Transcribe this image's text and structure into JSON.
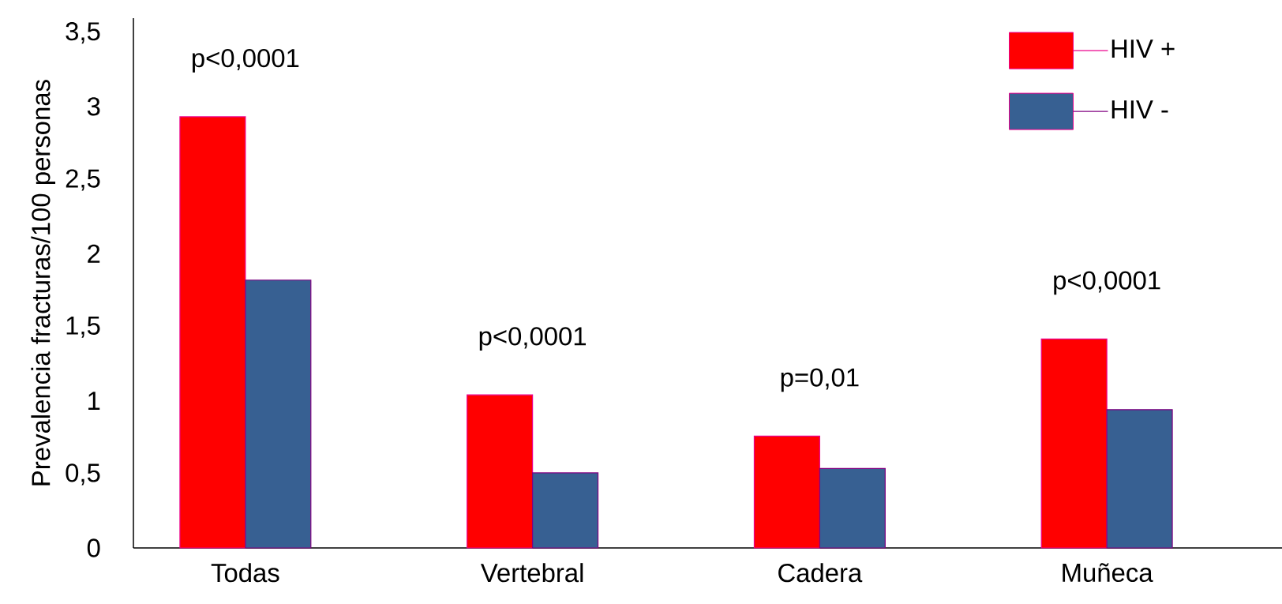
{
  "chart_data": {
    "type": "bar",
    "ylabel": "Prevalencia fracturas/100 personas",
    "categories": [
      "Todas",
      "Vertebral",
      "Cadera",
      "Muñeca"
    ],
    "series": [
      {
        "name": "HIV +",
        "color": "#ff0000",
        "values": [
          2.93,
          1.04,
          0.76,
          1.42
        ]
      },
      {
        "name": "HIV -",
        "color": "#376092",
        "values": [
          1.82,
          0.51,
          0.54,
          0.94
        ]
      }
    ],
    "ylim": [
      0,
      3.6
    ],
    "yticks": [
      0,
      {
        "value": 0.5,
        "label": "0,5"
      },
      1,
      {
        "value": 1.5,
        "label": "1,5"
      },
      2,
      {
        "value": 2.5,
        "label": "2,5"
      },
      3,
      {
        "value": 3.5,
        "label": "3,5"
      }
    ],
    "annotations": [
      "p<0,0001",
      "p<0,0001",
      "p=0,01",
      "p<0,0001"
    ],
    "grid": false,
    "legend": "top right"
  }
}
